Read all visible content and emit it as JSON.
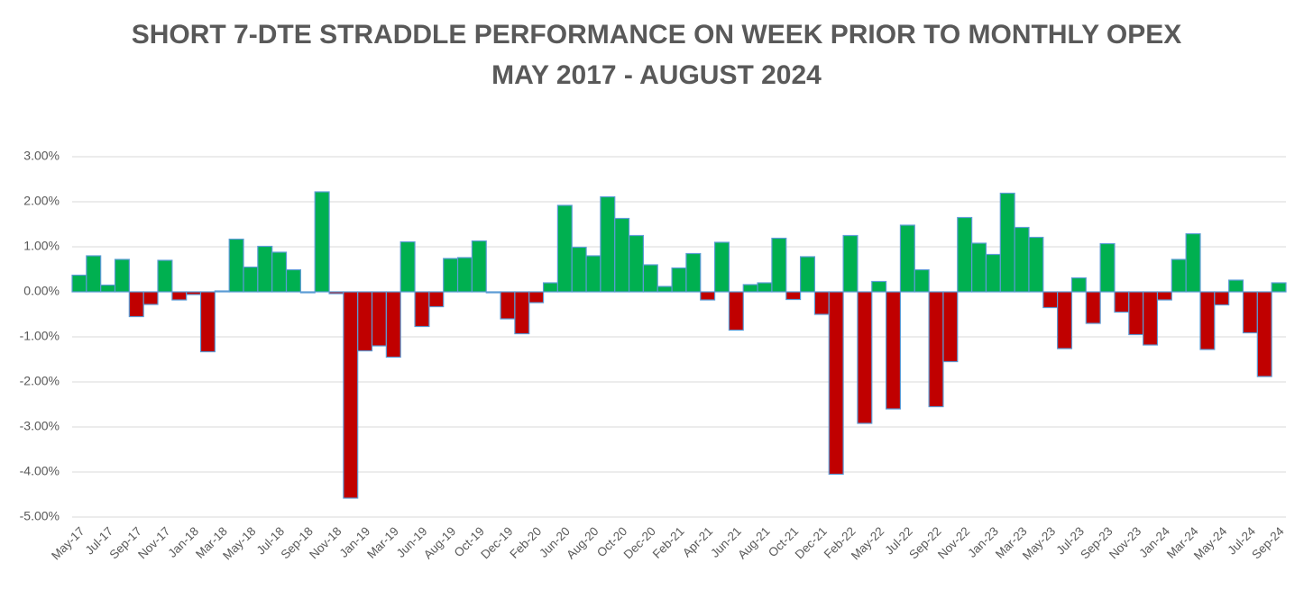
{
  "chart_data": {
    "type": "bar",
    "title": "SHORT 7-DTE STRADDLE PERFORMANCE ON WEEK PRIOR TO MONTHLY OPEX",
    "subtitle": "MAY 2017 - AUGUST 2024",
    "categories": [
      "May-17",
      null,
      "Jul-17",
      null,
      "Sep-17",
      null,
      "Nov-17",
      null,
      "Jan-18",
      null,
      "Mar-18",
      null,
      "May-18",
      null,
      "Jul-18",
      null,
      "Sep-18",
      null,
      "Nov-18",
      null,
      "Jan-19",
      null,
      "Mar-19",
      null,
      "Jun-19",
      null,
      "Aug-19",
      null,
      "Oct-19",
      null,
      "Dec-19",
      null,
      "Feb-20",
      null,
      "Jun-20",
      null,
      "Aug-20",
      null,
      "Oct-20",
      null,
      "Dec-20",
      null,
      "Feb-21",
      null,
      "Apr-21",
      null,
      "Jun-21",
      null,
      "Aug-21",
      null,
      "Oct-21",
      null,
      "Dec-21",
      null,
      "Feb-22",
      null,
      "May-22",
      null,
      "Jul-22",
      null,
      "Sep-22",
      null,
      "Nov-22",
      null,
      "Jan-23",
      null,
      "Mar-23",
      null,
      "May-23",
      null,
      "Jul-23",
      null,
      "Sep-23",
      null,
      "Nov-23",
      null,
      "Jan-24",
      null,
      "Mar-24",
      null,
      "May-24",
      null,
      "Jul-24",
      null,
      "Sep-24"
    ],
    "values": [
      0.37,
      0.8,
      0.15,
      0.72,
      -0.55,
      -0.28,
      0.7,
      -0.18,
      -0.06,
      -1.33,
      0.02,
      1.17,
      0.55,
      1.01,
      0.88,
      0.49,
      -0.02,
      2.22,
      -0.04,
      -4.58,
      -1.31,
      -1.2,
      -1.45,
      1.11,
      -0.77,
      -0.33,
      0.74,
      0.76,
      1.13,
      -0.02,
      -0.6,
      -0.93,
      -0.24,
      0.2,
      1.92,
      0.99,
      0.8,
      2.11,
      1.63,
      1.25,
      0.6,
      0.12,
      0.53,
      0.85,
      -0.18,
      1.1,
      -0.85,
      0.16,
      0.2,
      1.19,
      -0.17,
      0.78,
      -0.5,
      -4.05,
      1.25,
      -2.92,
      0.23,
      -2.6,
      1.48,
      0.49,
      -2.55,
      -1.55,
      1.65,
      1.08,
      0.83,
      2.19,
      1.43,
      1.21,
      -0.35,
      -1.26,
      0.31,
      -0.7,
      1.07,
      -0.45,
      -0.95,
      -1.18,
      -0.18,
      0.72,
      1.29,
      -1.28,
      -0.29,
      0.26,
      -0.91,
      -1.88,
      0.2
    ],
    "positive_color": "#00b050",
    "negative_color": "#c00000",
    "edge_color": "#5b9bd5",
    "ylim": [
      -5,
      3
    ],
    "yticks": [
      {
        "value": -5,
        "label": "-5.00%"
      },
      {
        "value": -4,
        "label": "-4.00%"
      },
      {
        "value": -3,
        "label": "-3.00%"
      },
      {
        "value": -2,
        "label": "-2.00%"
      },
      {
        "value": -1,
        "label": "-1.00%"
      },
      {
        "value": 0,
        "label": "0.00%"
      },
      {
        "value": 1,
        "label": "1.00%"
      },
      {
        "value": 2,
        "label": "2.00%"
      },
      {
        "value": 3,
        "label": "3.00%"
      }
    ],
    "grid": true
  }
}
